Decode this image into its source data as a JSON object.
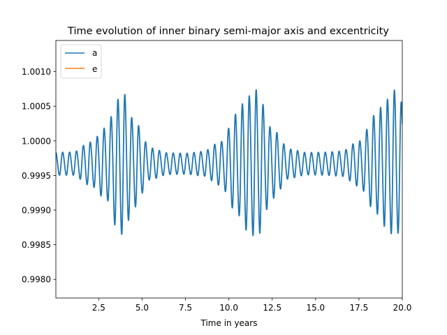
{
  "chart_data": {
    "type": "line",
    "title": "Time evolution of inner binary semi-major axis and excentricity",
    "xlabel": "Time in years",
    "ylabel": "",
    "xlim": [
      0.03,
      20.0
    ],
    "ylim": [
      0.99773,
      1.00145
    ],
    "xticks": [
      {
        "value": 2.5,
        "label": "2.5"
      },
      {
        "value": 5.0,
        "label": "5.0"
      },
      {
        "value": 7.5,
        "label": "7.5"
      },
      {
        "value": 10.0,
        "label": "10.0"
      },
      {
        "value": 12.5,
        "label": "12.5"
      },
      {
        "value": 15.0,
        "label": "15.0"
      },
      {
        "value": 17.5,
        "label": "17.5"
      },
      {
        "value": 20.0,
        "label": "20.0"
      }
    ],
    "yticks": [
      {
        "value": 0.998,
        "label": "0.9980"
      },
      {
        "value": 0.9985,
        "label": "0.9985"
      },
      {
        "value": 0.999,
        "label": "0.9990"
      },
      {
        "value": 0.9995,
        "label": "0.9995"
      },
      {
        "value": 1.0,
        "label": "1.0000"
      },
      {
        "value": 1.0005,
        "label": "1.0005"
      },
      {
        "value": 1.001,
        "label": "1.0010"
      }
    ],
    "legend_position": "top-left",
    "grid": false,
    "series": [
      {
        "name": "a",
        "color": "#1f77b4",
        "oscillation_period_years": 0.3984,
        "x": [
          0.03,
          1.0,
          2.0,
          3.0,
          3.5,
          3.9,
          4.5,
          5.5,
          6.5,
          7.5,
          8.5,
          9.5,
          10.5,
          11.0,
          11.6,
          12.5,
          13.5,
          14.5,
          15.5,
          16.5,
          17.5,
          18.5,
          19.0,
          19.6,
          20.0
        ],
        "amplitude": [
          0.00033,
          0.00033,
          0.00062,
          0.00106,
          0.0018,
          0.00205,
          0.00127,
          0.00045,
          0.00031,
          0.0003,
          0.00035,
          0.00062,
          0.00145,
          0.0019,
          0.00212,
          0.001,
          0.00042,
          0.00032,
          0.00033,
          0.00036,
          0.00065,
          0.00143,
          0.0018,
          0.00212,
          0.00175
        ]
      },
      {
        "name": "e",
        "color": "#ff7f0e",
        "x": [],
        "y": []
      }
    ]
  }
}
